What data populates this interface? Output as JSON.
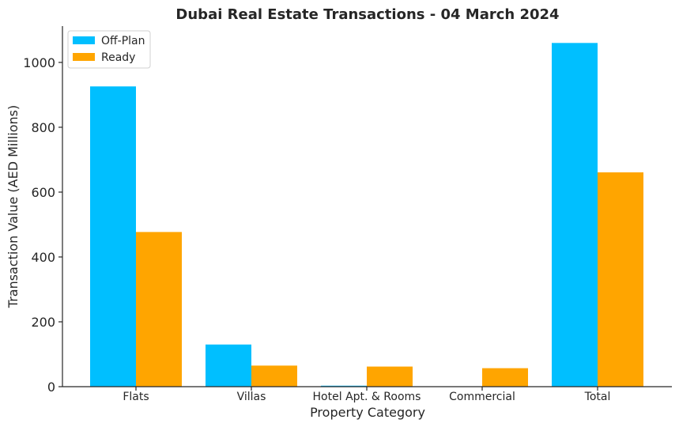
{
  "chart_data": {
    "type": "bar",
    "title": "Dubai Real Estate Transactions - 04 March 2024",
    "xlabel": "Property Category",
    "ylabel": "Transaction Value (AED Millions)",
    "categories": [
      "Flats",
      "Villas",
      "Hotel Apt. & Rooms",
      "Commercial",
      "Total"
    ],
    "series": [
      {
        "name": "Off-Plan",
        "color": "#00BFFF",
        "values": [
          926,
          130,
          3,
          0,
          1060
        ]
      },
      {
        "name": "Ready",
        "color": "#FFA500",
        "values": [
          477,
          65,
          62,
          57,
          661
        ]
      }
    ],
    "ylim": [
      0,
      1112
    ],
    "yticks": [
      0,
      200,
      400,
      600,
      800,
      1000
    ],
    "legend": "top-left",
    "grid": false
  }
}
